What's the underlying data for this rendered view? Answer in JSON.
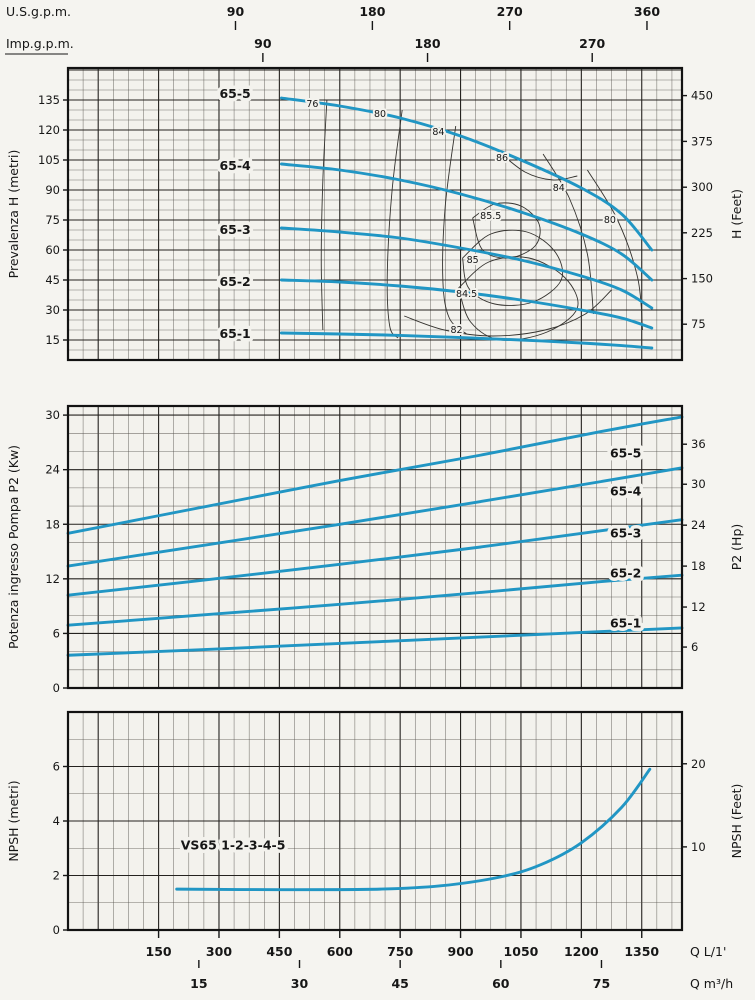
{
  "colors": {
    "curve_blue": "#2196c4",
    "grid": "#55524c",
    "frame": "#121212",
    "background": "#f5f4f0"
  },
  "flow_axis": {
    "q_min": -75,
    "q_max": 1450,
    "x_minor": 37.5,
    "x_major": 150
  },
  "top_axes": [
    {
      "label": "U.S.g.p.m.",
      "ticks": [
        {
          "label": "90",
          "q": 341
        },
        {
          "label": "180",
          "q": 681
        },
        {
          "label": "270",
          "q": 1022
        },
        {
          "label": "360",
          "q": 1363
        }
      ]
    },
    {
      "label": "Imp.g.p.m.",
      "underline": true,
      "ticks": [
        {
          "label": "90",
          "q": 409
        },
        {
          "label": "180",
          "q": 818
        },
        {
          "label": "270",
          "q": 1227
        }
      ]
    }
  ],
  "bottom_axes": [
    {
      "label": "Q L/1'",
      "ticks": [
        {
          "label": "150",
          "q": 150
        },
        {
          "label": "300",
          "q": 300
        },
        {
          "label": "450",
          "q": 450
        },
        {
          "label": "600",
          "q": 600
        },
        {
          "label": "750",
          "q": 750
        },
        {
          "label": "900",
          "q": 900
        },
        {
          "label": "1050",
          "q": 1050
        },
        {
          "label": "1200",
          "q": 1200
        },
        {
          "label": "1350",
          "q": 1350
        }
      ]
    },
    {
      "label": "Q m³/h",
      "ticks": [
        {
          "label": "15",
          "q": 250
        },
        {
          "label": "30",
          "q": 500
        },
        {
          "label": "45",
          "q": 750
        },
        {
          "label": "60",
          "q": 1000
        },
        {
          "label": "75",
          "q": 1250
        }
      ]
    }
  ],
  "chart_data": [
    {
      "type": "line",
      "id": "head-flow",
      "ylabel_left": "Prevalenza H (metri)",
      "ylabel_right": "H (Feet)",
      "y_range": [
        5,
        151
      ],
      "grid": {
        "y_minor": 5,
        "y_major": 15
      },
      "ticks_left": [
        15,
        30,
        45,
        60,
        75,
        90,
        105,
        120,
        135
      ],
      "ticks_right": [
        {
          "label": "75",
          "v": 22.9
        },
        {
          "label": "150",
          "v": 45.7
        },
        {
          "label": "225",
          "v": 68.6
        },
        {
          "label": "300",
          "v": 91.4
        },
        {
          "label": "375",
          "v": 114.3
        },
        {
          "label": "450",
          "v": 137.2
        }
      ],
      "series": [
        {
          "name": "65-5",
          "label_at": [
            340,
            138
          ],
          "points": [
            [
              455,
              136
            ],
            [
              600,
              132
            ],
            [
              750,
              126
            ],
            [
              900,
              117
            ],
            [
              1050,
              105
            ],
            [
              1200,
              91
            ],
            [
              1300,
              78
            ],
            [
              1375,
              60
            ]
          ]
        },
        {
          "name": "65-4",
          "label_at": [
            340,
            102
          ],
          "points": [
            [
              455,
              103
            ],
            [
              600,
              100
            ],
            [
              750,
              95
            ],
            [
              900,
              88
            ],
            [
              1050,
              79
            ],
            [
              1200,
              68
            ],
            [
              1300,
              58
            ],
            [
              1375,
              45
            ]
          ]
        },
        {
          "name": "65-3",
          "label_at": [
            340,
            70
          ],
          "points": [
            [
              455,
              71
            ],
            [
              600,
              69
            ],
            [
              750,
              66
            ],
            [
              900,
              61
            ],
            [
              1050,
              55
            ],
            [
              1200,
              47
            ],
            [
              1300,
              40
            ],
            [
              1375,
              31
            ]
          ]
        },
        {
          "name": "65-2",
          "label_at": [
            340,
            44
          ],
          "points": [
            [
              455,
              45
            ],
            [
              600,
              44
            ],
            [
              750,
              42
            ],
            [
              900,
              39
            ],
            [
              1050,
              35
            ],
            [
              1200,
              30
            ],
            [
              1300,
              26
            ],
            [
              1375,
              21
            ]
          ]
        },
        {
          "name": "65-1",
          "label_at": [
            340,
            18
          ],
          "points": [
            [
              455,
              18.5
            ],
            [
              600,
              18
            ],
            [
              750,
              17.3
            ],
            [
              900,
              16.2
            ],
            [
              1050,
              15
            ],
            [
              1200,
              13.5
            ],
            [
              1300,
              12.2
            ],
            [
              1375,
              11
            ]
          ]
        }
      ],
      "efficiency_contours": [
        {
          "label": "76",
          "label_at": [
            532,
            133
          ],
          "points": [
            [
              568,
              135
            ],
            [
              558,
              95
            ],
            [
              554,
              55
            ],
            [
              558,
              20
            ]
          ]
        },
        {
          "label": "80",
          "label_at": [
            700,
            128
          ],
          "points": [
            [
              755,
              130
            ],
            [
              730,
              90
            ],
            [
              718,
              48
            ],
            [
              724,
              22
            ],
            [
              745,
              16
            ]
          ]
        },
        {
          "label": "84",
          "label_at": [
            845,
            119
          ],
          "points": [
            [
              888,
              122
            ],
            [
              862,
              82
            ],
            [
              856,
              45
            ],
            [
              872,
              26
            ],
            [
              915,
              18
            ]
          ]
        },
        {
          "label": "86",
          "label_at": [
            1003,
            106
          ],
          "points": [
            [
              990,
              110
            ],
            [
              1060,
              99
            ],
            [
              1130,
              95
            ],
            [
              1190,
              97
            ]
          ]
        },
        {
          "label": "84",
          "label_at": [
            1144,
            91
          ],
          "points": [
            [
              1105,
              108
            ],
            [
              1170,
              86
            ],
            [
              1215,
              58
            ],
            [
              1230,
              28
            ]
          ]
        },
        {
          "label": "80",
          "label_at": [
            1271,
            75
          ],
          "points": [
            [
              1215,
              100
            ],
            [
              1290,
              75
            ],
            [
              1340,
              46
            ],
            [
              1352,
              20
            ]
          ]
        },
        {
          "label": "85.5",
          "label_at": [
            975,
            77
          ],
          "points": [
            [
              930,
              76
            ],
            [
              985,
              83
            ],
            [
              1050,
              82
            ],
            [
              1095,
              73
            ],
            [
              1085,
              62
            ],
            [
              1020,
              56
            ],
            [
              955,
              60
            ],
            [
              930,
              76
            ]
          ]
        },
        {
          "label": "85",
          "label_at": [
            930,
            55
          ],
          "points": [
            [
              905,
              56
            ],
            [
              975,
              68
            ],
            [
              1065,
              69
            ],
            [
              1135,
              59
            ],
            [
              1150,
              45
            ],
            [
              1080,
              34
            ],
            [
              985,
              33
            ],
            [
              920,
              41
            ],
            [
              905,
              56
            ]
          ]
        },
        {
          "label": "84.5",
          "label_at": [
            915,
            38
          ],
          "points": [
            [
              895,
              41
            ],
            [
              970,
              54
            ],
            [
              1070,
              56
            ],
            [
              1160,
              46
            ],
            [
              1190,
              31
            ],
            [
              1115,
              19
            ],
            [
              1000,
              15
            ],
            [
              925,
              24
            ],
            [
              895,
              41
            ]
          ]
        },
        {
          "label": "82",
          "label_at": [
            890,
            20
          ],
          "points": [
            [
              760,
              27
            ],
            [
              860,
              20
            ],
            [
              980,
              17
            ],
            [
              1110,
              20
            ],
            [
              1210,
              28
            ],
            [
              1275,
              40
            ]
          ]
        }
      ]
    },
    {
      "type": "line",
      "id": "power-flow",
      "ylabel_left": "Potenza ingresso Pompa P2 (Kw)",
      "ylabel_right": "P2 (Hp)",
      "y_range": [
        0,
        31
      ],
      "grid": {
        "y_minor": 2,
        "y_major": 6
      },
      "ticks_left": [
        0,
        6,
        12,
        18,
        24,
        30
      ],
      "ticks_right": [
        {
          "label": "6",
          "v": 4.5
        },
        {
          "label": "12",
          "v": 8.9
        },
        {
          "label": "18",
          "v": 13.4
        },
        {
          "label": "24",
          "v": 17.9
        },
        {
          "label": "30",
          "v": 22.4
        },
        {
          "label": "36",
          "v": 26.8
        }
      ],
      "series": [
        {
          "name": "65-5",
          "label_at": [
            1310,
            25.8
          ],
          "points": [
            [
              -75,
              17
            ],
            [
              250,
              19.8
            ],
            [
              600,
              22.8
            ],
            [
              950,
              25.6
            ],
            [
              1250,
              28.2
            ],
            [
              1450,
              29.8
            ]
          ]
        },
        {
          "name": "65-4",
          "label_at": [
            1310,
            21.6
          ],
          "points": [
            [
              -75,
              13.4
            ],
            [
              250,
              15.6
            ],
            [
              600,
              18
            ],
            [
              950,
              20.5
            ],
            [
              1250,
              22.7
            ],
            [
              1450,
              24.2
            ]
          ]
        },
        {
          "name": "65-3",
          "label_at": [
            1310,
            17.0
          ],
          "points": [
            [
              -75,
              10.2
            ],
            [
              250,
              11.8
            ],
            [
              600,
              13.6
            ],
            [
              950,
              15.5
            ],
            [
              1250,
              17.3
            ],
            [
              1450,
              18.5
            ]
          ]
        },
        {
          "name": "65-2",
          "label_at": [
            1310,
            12.6
          ],
          "points": [
            [
              -75,
              6.9
            ],
            [
              250,
              8
            ],
            [
              600,
              9.2
            ],
            [
              950,
              10.5
            ],
            [
              1250,
              11.7
            ],
            [
              1450,
              12.4
            ]
          ]
        },
        {
          "name": "65-1",
          "label_at": [
            1310,
            7.1
          ],
          "points": [
            [
              -75,
              3.6
            ],
            [
              250,
              4.2
            ],
            [
              600,
              4.9
            ],
            [
              950,
              5.6
            ],
            [
              1250,
              6.2
            ],
            [
              1450,
              6.6
            ]
          ]
        }
      ],
      "efficiency_contours": []
    },
    {
      "type": "line",
      "id": "npsh-flow",
      "ylabel_left": "NPSH (metri)",
      "ylabel_right": "NPSH (Feet)",
      "y_range": [
        0,
        8
      ],
      "grid": {
        "y_minor": 1,
        "y_major": 2
      },
      "ticks_left": [
        0,
        2,
        4,
        6
      ],
      "ticks_right": [
        {
          "label": "10",
          "v": 3.05
        },
        {
          "label": "20",
          "v": 6.1
        }
      ],
      "series": [
        {
          "name": "VS65 1-2-3-4-5",
          "label_at": [
            335,
            3.1
          ],
          "points": [
            [
              195,
              1.5
            ],
            [
              450,
              1.48
            ],
            [
              700,
              1.5
            ],
            [
              850,
              1.62
            ],
            [
              1000,
              1.95
            ],
            [
              1100,
              2.4
            ],
            [
              1200,
              3.2
            ],
            [
              1300,
              4.5
            ],
            [
              1370,
              5.9
            ]
          ]
        }
      ],
      "efficiency_contours": []
    }
  ]
}
